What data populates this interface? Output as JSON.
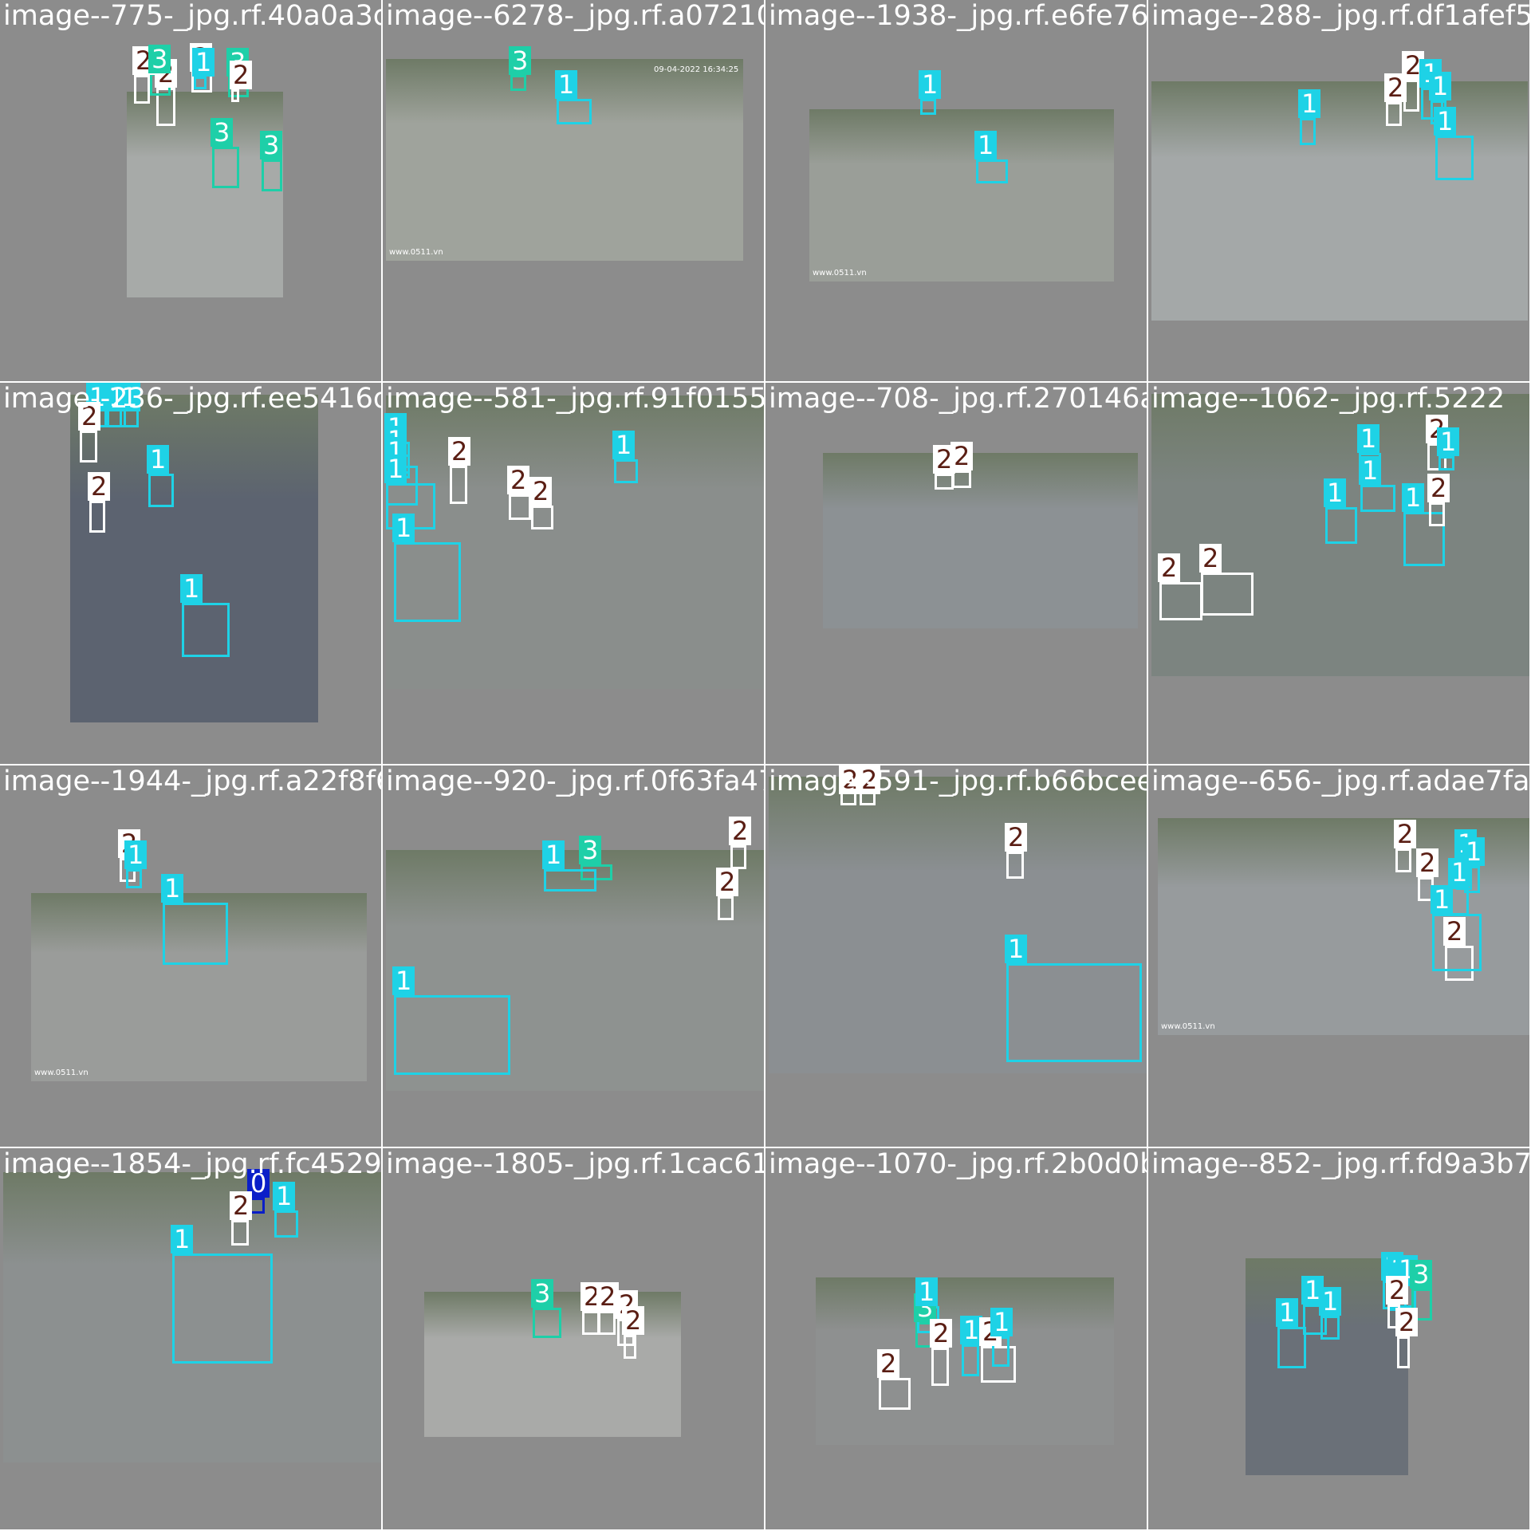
{
  "palette": {
    "class_0": "#0a1ec8",
    "class_1": "#1ed2e6",
    "class_2": "#ffffff",
    "class_3": "#1ecfa8",
    "tile_background": "#8c8c8c"
  },
  "tiles": [
    {
      "title": "image--775-_jpg.rf.40a0a3d",
      "labels": [
        "2",
        "2",
        "3",
        "2",
        "1",
        "3",
        "2",
        "3",
        "3"
      ]
    },
    {
      "title": "image--6278-_jpg.rf.a072104",
      "labels": [
        "3",
        "1"
      ],
      "overlay_text": [
        "09-04-2022 16:34:25",
        "www.0511.vn"
      ]
    },
    {
      "title": "image--1938-_jpg.rf.e6fe762",
      "labels": [
        "1",
        "1"
      ],
      "overlay_text": [
        "www.0511.vn"
      ]
    },
    {
      "title": "image--288-_jpg.rf.df1afef5",
      "labels": [
        "1",
        "2",
        "2",
        "1",
        "1",
        "1"
      ]
    },
    {
      "title": "image--236-_jpg.rf.ee5416d5",
      "labels": [
        "1",
        "1",
        "1",
        "2",
        "2",
        "1",
        "1"
      ]
    },
    {
      "title": "image--581-_jpg.rf.91f0155",
      "labels": [
        "1",
        "1",
        "1",
        "1",
        "2",
        "2",
        "2",
        "1",
        "1"
      ]
    },
    {
      "title": "image--708-_jpg.rf.270146a",
      "labels": [
        "2",
        "2"
      ]
    },
    {
      "title": "image--1062-_jpg.rf.5222",
      "labels": [
        "1",
        "1",
        "1",
        "2",
        "1",
        "2",
        "2",
        "2",
        "1"
      ]
    },
    {
      "title": "image--1944-_jpg.rf.a22f8f6",
      "labels": [
        "2",
        "1",
        "1"
      ],
      "overlay_text": [
        "www.0511.vn"
      ]
    },
    {
      "title": "image--920-_jpg.rf.0f63fa47bf",
      "labels": [
        "3",
        "1",
        "2",
        "2",
        "1"
      ]
    },
    {
      "title": "image--591-_jpg.rf.b66bcee",
      "labels": [
        "2",
        "2",
        "2",
        "1"
      ]
    },
    {
      "title": "image--656-_jpg.rf.adae7fac",
      "labels": [
        "2",
        "2",
        "2",
        "1",
        "1",
        "1",
        "1"
      ],
      "overlay_text": [
        "www.0511.vn"
      ]
    },
    {
      "title": "image--1854-_jpg.rf.fc4529",
      "labels": [
        "0",
        "2",
        "1",
        "1"
      ]
    },
    {
      "title": "image--1805-_jpg.rf.1cac619",
      "labels": [
        "3",
        "2",
        "2",
        "2",
        "2"
      ]
    },
    {
      "title": "image--1070-_jpg.rf.2b0d0b",
      "labels": [
        "3",
        "1",
        "2",
        "1",
        "2",
        "1",
        "2"
      ]
    },
    {
      "title": "image--852-_jpg.rf.fd9a3b75",
      "labels": [
        "1",
        "1",
        "1",
        "3",
        "1",
        "1",
        "2",
        "1",
        "2"
      ]
    }
  ]
}
